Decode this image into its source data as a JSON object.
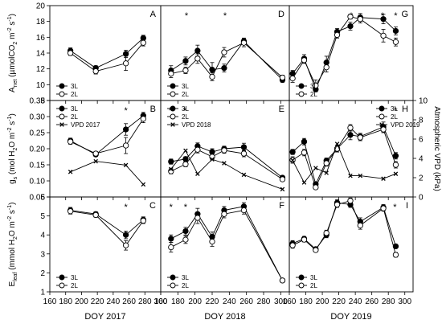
{
  "chart_data": {
    "type": "line",
    "layout": "3x3 panel grid; rows share y axes, columns share x axes",
    "x_ticks": [
      160,
      180,
      200,
      220,
      240,
      260,
      280,
      300
    ],
    "y_axes": {
      "anet": {
        "label": "A_net (µmol CO2 m-2 s-1)",
        "label_main": "A",
        "label_sub": "net",
        "label_rest": " (µmolCO",
        "label_sub2": "2",
        "label_rest2": " m",
        "label_sup": "-2",
        "label_rest3": " s",
        "label_sup2": "-1",
        "label_end": ")",
        "ylim": [
          8,
          20
        ],
        "ticks": [
          8,
          10,
          12,
          14,
          16,
          18,
          20
        ]
      },
      "gs": {
        "label": "g_s (mol H2O m-2 s-1)",
        "label_main": "g",
        "label_sub": "s",
        "label_rest": " (mol H",
        "label_sub2": "2",
        "label_rest2": "O m",
        "label_sup": "-2",
        "label_rest3": " s",
        "label_sup2": "-1",
        "label_end": ")",
        "ylim": [
          0.05,
          0.35
        ],
        "ticks": [
          0.05,
          0.1,
          0.15,
          0.2,
          0.25,
          0.3,
          0.35
        ],
        "tick_labels": [
          "0.05",
          "0.10",
          "0.15",
          "0.20",
          "0.25",
          "0.30",
          "0.35"
        ]
      },
      "eleaf": {
        "label": "E_leaf (mmol H2O m-2 s-1)",
        "label_main": "E",
        "label_sub": "leaf",
        "label_rest": " (mmol H",
        "label_sub2": "2",
        "label_rest2": "O m",
        "label_sup": "-2",
        "label_rest3": " s",
        "label_sup2": "-1",
        "label_end": ")",
        "ylim": [
          1,
          6
        ],
        "ticks": [
          1,
          2,
          3,
          4,
          5,
          6
        ]
      },
      "vpd": {
        "label": "Atmospheric VPD (kPa)",
        "ylim": [
          0,
          10
        ],
        "ticks": [
          0,
          2,
          4,
          6,
          8,
          10
        ]
      }
    },
    "columns": [
      {
        "xlabel": "DOY 2017",
        "xlim": [
          160,
          300
        ]
      },
      {
        "xlabel": "DOY 2018",
        "xlim": [
          160,
          310
        ]
      },
      {
        "xlabel": "DOY 2019",
        "xlim": [
          160,
          310
        ]
      }
    ],
    "legend_labels": {
      "l3": "3L",
      "l2": "2L"
    },
    "panels": [
      {
        "id": "A",
        "row": 0,
        "col": 0,
        "star_x": [],
        "series": [
          {
            "name": "3L",
            "x": [
              186,
              218,
              256,
              278
            ],
            "y": [
              14.3,
              12.1,
              13.9,
              15.9
            ],
            "err": [
              0.35,
              0.3,
              0.45,
              0.35
            ]
          },
          {
            "name": "2L",
            "x": [
              186,
              218,
              256,
              278
            ],
            "y": [
              14.0,
              11.7,
              12.7,
              15.3
            ],
            "err": [
              0.3,
              0.35,
              0.9,
              0.4
            ]
          }
        ],
        "legend": "bottom-left"
      },
      {
        "id": "D",
        "row": 0,
        "col": 1,
        "star_x": [
          190,
          235
        ],
        "series": [
          {
            "name": "3L",
            "x": [
              172,
              189,
              203,
              220,
              234,
              257,
              302
            ],
            "y": [
              11.8,
              13.0,
              14.3,
              11.9,
              12.1,
              15.5,
              10.6
            ],
            "err": [
              0.6,
              0.5,
              0.7,
              0.9,
              0.5,
              0.4,
              0.3
            ]
          },
          {
            "name": "2L",
            "x": [
              172,
              189,
              203,
              220,
              234,
              257,
              302
            ],
            "y": [
              11.4,
              11.8,
              13.3,
              11.0,
              14.1,
              15.3,
              10.9
            ],
            "err": [
              0.5,
              0.4,
              0.6,
              0.5,
              0.6,
              0.5,
              0.3
            ]
          }
        ],
        "legend": "bottom-left"
      },
      {
        "id": "G",
        "row": 0,
        "col": 2,
        "star_x": [
          235,
          273,
          289
        ],
        "series": [
          {
            "name": "3L",
            "x": [
              164,
              178,
              192,
              205,
              218,
              234,
              246,
              274,
              289
            ],
            "y": [
              11.4,
              13.3,
              9.4,
              12.8,
              16.7,
              17.4,
              18.5,
              18.3,
              16.8
            ],
            "err": [
              0.4,
              0.5,
              0.3,
              0.8,
              0.4,
              0.5,
              0.5,
              0.6,
              0.5
            ]
          },
          {
            "name": "2L",
            "x": [
              164,
              178,
              192,
              205,
              218,
              234,
              246,
              274,
              289
            ],
            "y": [
              10.8,
              13.1,
              9.9,
              12.2,
              16.3,
              18.6,
              18.3,
              16.2,
              15.4
            ],
            "err": [
              0.5,
              0.4,
              0.7,
              0.6,
              0.4,
              0.3,
              0.5,
              0.8,
              0.5
            ]
          }
        ],
        "legend": "bottom-left"
      },
      {
        "id": "B",
        "row": 1,
        "col": 0,
        "star_x": [
          256
        ],
        "series": [
          {
            "name": "3L",
            "x": [
              186,
              218,
              256,
              278
            ],
            "y": [
              0.225,
              0.182,
              0.26,
              0.303
            ],
            "err": [
              0.008,
              0.006,
              0.018,
              0.01
            ]
          },
          {
            "name": "2L",
            "x": [
              186,
              218,
              256,
              278
            ],
            "y": [
              0.222,
              0.185,
              0.21,
              0.293
            ],
            "err": [
              0.008,
              0.006,
              0.025,
              0.012
            ]
          },
          {
            "name": "VPD 2017",
            "x": [
              186,
              218,
              256,
              278
            ],
            "y": [
              2.6,
              3.7,
              3.3,
              1.3
            ],
            "axis": "vpd"
          }
        ],
        "legend": "top-left"
      },
      {
        "id": "E",
        "row": 1,
        "col": 1,
        "star_x": [
          171,
          188
        ],
        "series": [
          {
            "name": "3L",
            "x": [
              172,
              189,
              203,
              220,
              234,
              257,
              302
            ],
            "y": [
              0.16,
              0.168,
              0.208,
              0.19,
              0.2,
              0.205,
              0.11
            ],
            "err": [
              0.008,
              0.007,
              0.01,
              0.01,
              0.008,
              0.012,
              0.005
            ]
          },
          {
            "name": "2L",
            "x": [
              172,
              189,
              203,
              220,
              234,
              257,
              302
            ],
            "y": [
              0.13,
              0.152,
              0.197,
              0.175,
              0.195,
              0.185,
              0.105
            ],
            "err": [
              0.008,
              0.008,
              0.01,
              0.009,
              0.009,
              0.01,
              0.005
            ]
          },
          {
            "name": "VPD 2018",
            "x": [
              172,
              189,
              203,
              220,
              234,
              257,
              302
            ],
            "y": [
              2.9,
              4.8,
              2.4,
              3.9,
              3.5,
              2.3,
              0.8
            ],
            "axis": "vpd"
          }
        ],
        "legend": "top-left"
      },
      {
        "id": "H",
        "row": 1,
        "col": 2,
        "star_x": [
          289
        ],
        "series": [
          {
            "name": "3L",
            "x": [
              164,
              178,
              192,
              205,
              218,
              234,
              246,
              274,
              289
            ],
            "y": [
              0.19,
              0.222,
              0.09,
              0.163,
              0.2,
              0.243,
              0.238,
              0.268,
              0.178
            ],
            "err": [
              0.008,
              0.01,
              0.005,
              0.008,
              0.01,
              0.015,
              0.01,
              0.015,
              0.01
            ]
          },
          {
            "name": "2L",
            "x": [
              164,
              178,
              192,
              205,
              218,
              234,
              246,
              274,
              289
            ],
            "y": [
              0.165,
              0.188,
              0.08,
              0.155,
              0.2,
              0.265,
              0.235,
              0.26,
              0.15
            ],
            "err": [
              0.01,
              0.01,
              0.005,
              0.009,
              0.01,
              0.01,
              0.01,
              0.01,
              0.01
            ]
          },
          {
            "name": "VPD 2019",
            "x": [
              164,
              178,
              192,
              205,
              218,
              234,
              246,
              274,
              289
            ],
            "y": [
              3.8,
              1.5,
              3.0,
              2.5,
              5.5,
              2.2,
              2.2,
              1.9,
              2.4
            ],
            "axis": "vpd"
          }
        ],
        "legend": "top-right"
      },
      {
        "id": "C",
        "row": 2,
        "col": 0,
        "star_x": [
          256
        ],
        "series": [
          {
            "name": "3L",
            "x": [
              186,
              218,
              256,
              278
            ],
            "y": [
              5.3,
              5.1,
              4.0,
              4.8
            ],
            "err": [
              0.15,
              0.12,
              0.2,
              0.15
            ]
          },
          {
            "name": "2L",
            "x": [
              186,
              218,
              256,
              278
            ],
            "y": [
              5.25,
              5.05,
              3.45,
              4.75
            ],
            "err": [
              0.15,
              0.12,
              0.25,
              0.15
            ]
          }
        ],
        "legend": "bottom-left"
      },
      {
        "id": "F",
        "row": 2,
        "col": 1,
        "star_x": [
          172,
          189
        ],
        "series": [
          {
            "name": "3L",
            "x": [
              172,
              189,
              203,
              220,
              234,
              257,
              302
            ],
            "y": [
              3.8,
              4.2,
              5.1,
              3.9,
              5.3,
              5.5,
              1.6
            ],
            "err": [
              0.2,
              0.2,
              0.3,
              0.25,
              0.2,
              0.2,
              0.05
            ]
          },
          {
            "name": "2L",
            "x": [
              172,
              189,
              203,
              220,
              234,
              257,
              302
            ],
            "y": [
              3.35,
              3.75,
              4.9,
              3.65,
              5.1,
              5.3,
              1.6
            ],
            "err": [
              0.25,
              0.2,
              0.3,
              0.25,
              0.2,
              0.2,
              0.05
            ]
          }
        ],
        "legend": "bottom-left"
      },
      {
        "id": "I",
        "row": 2,
        "col": 2,
        "star_x": [
          288
        ],
        "series": [
          {
            "name": "3L",
            "x": [
              164,
              178,
              192,
              205,
              218,
              234,
              246,
              274,
              289
            ],
            "y": [
              3.55,
              3.8,
              3.25,
              4.0,
              5.7,
              5.6,
              4.7,
              5.45,
              3.4
            ],
            "err": [
              0.15,
              0.12,
              0.1,
              0.15,
              0.15,
              0.15,
              0.2,
              0.15,
              0.1
            ]
          },
          {
            "name": "2L",
            "x": [
              164,
              178,
              192,
              205,
              218,
              234,
              246,
              274,
              289
            ],
            "y": [
              3.45,
              3.75,
              3.2,
              4.1,
              5.6,
              5.8,
              4.5,
              5.4,
              2.95
            ],
            "err": [
              0.15,
              0.12,
              0.1,
              0.15,
              0.15,
              0.15,
              0.2,
              0.15,
              0.12
            ]
          }
        ],
        "legend": "bottom-left"
      }
    ]
  }
}
